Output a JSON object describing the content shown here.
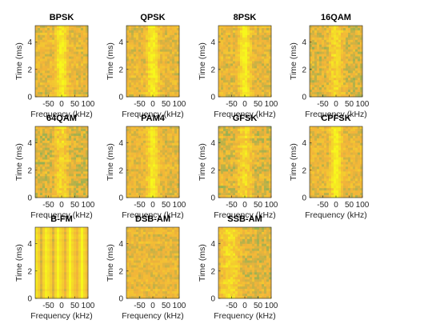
{
  "colors": {
    "background": "#ffffff",
    "axis": "#262626",
    "low": "#3fae69",
    "mid": "#f2b33a",
    "high": "#f7f71c"
  },
  "chart_data": {
    "type": "heatmap",
    "layout": {
      "rows": 3,
      "cols": 4
    },
    "xlabel": "Frequency (kHz)",
    "ylabel": "Time (ms)",
    "xlim": [
      -100,
      100
    ],
    "ylim": [
      0,
      5.2
    ],
    "xticks": [
      -50,
      0,
      50,
      100
    ],
    "yticks": [
      0,
      2,
      4
    ],
    "grid": false,
    "panels": [
      {
        "title": "BPSK",
        "pattern": "center-band"
      },
      {
        "title": "QPSK",
        "pattern": "center-band"
      },
      {
        "title": "8PSK",
        "pattern": "center-band"
      },
      {
        "title": "16QAM",
        "pattern": "center-band-faint"
      },
      {
        "title": "64QAM",
        "pattern": "center-band-faint"
      },
      {
        "title": "PAM4",
        "pattern": "center-band"
      },
      {
        "title": "GFSK",
        "pattern": "center-band-faint"
      },
      {
        "title": "CPFSK",
        "pattern": "center-band"
      },
      {
        "title": "B-FM",
        "pattern": "vertical-stripes"
      },
      {
        "title": "DSB-AM",
        "pattern": "horizontal-noise"
      },
      {
        "title": "SSB-AM",
        "pattern": "lower-sideband"
      }
    ]
  }
}
